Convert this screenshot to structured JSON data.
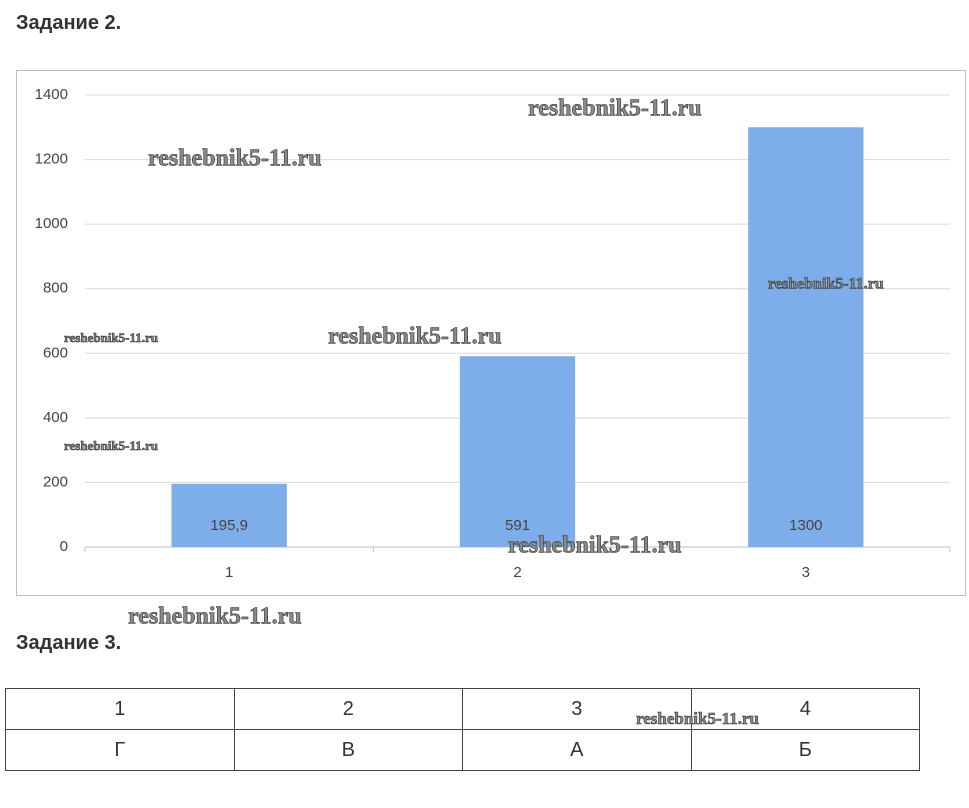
{
  "heading1": "Задание 2.",
  "chart_data": {
    "type": "bar",
    "categories": [
      "1",
      "2",
      "3"
    ],
    "values": [
      195.9,
      591,
      1300
    ],
    "value_labels": [
      "195,9",
      "591",
      "1300"
    ],
    "color": "#7eaeea",
    "ylim": [
      0,
      1400
    ],
    "yticks": [
      0,
      200,
      400,
      600,
      800,
      1000,
      1200,
      1400
    ],
    "grid": true
  },
  "heading2": "Задание 3.",
  "table": {
    "rows": [
      [
        "1",
        "2",
        "3",
        "4"
      ],
      [
        "Г",
        "В",
        "А",
        "Б"
      ]
    ]
  },
  "watermarks": [
    "reshebnik5-11.ru",
    "reshebnik5-11.ru",
    "reshebnik5-11.ru",
    "reshebnik5-11.ru",
    "reshebnik5-11.ru",
    "reshebnik5-11.ru",
    "reshebnik5-11.ru",
    "reshebnik5-11.ru",
    "reshebnik5-11.ru"
  ]
}
